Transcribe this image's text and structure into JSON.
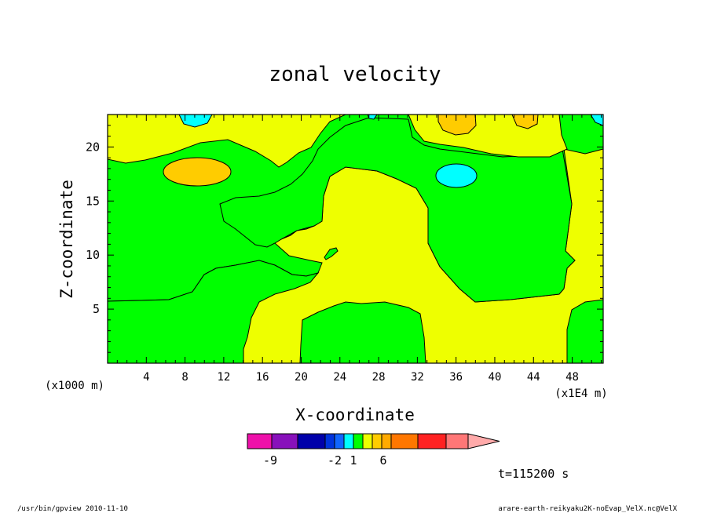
{
  "chart_data": {
    "type": "heatmap",
    "title": "zonal velocity",
    "xlabel": "X-coordinate",
    "ylabel": "Z-coordinate",
    "x_unit_label": "(x1E4 m)",
    "y_unit_label": "(x1000 m)",
    "xlim": [
      0,
      51.2
    ],
    "ylim": [
      0,
      23
    ],
    "x_ticks": [
      "4",
      "8",
      "12",
      "16",
      "20",
      "24",
      "28",
      "32",
      "36",
      "40",
      "44",
      "48"
    ],
    "y_ticks": [
      "5",
      "10",
      "15",
      "20"
    ],
    "time_label": "t=115200 s",
    "colorbar": {
      "colors": [
        "#ee11aa",
        "#8811bb",
        "#0000aa",
        "#0033dd",
        "#1166ff",
        "#00ffff",
        "#00ff00",
        "#eeff00",
        "#ffcc00",
        "#ffaa00",
        "#ff7700",
        "#ff2222",
        "#ff7777",
        "#ffaaaa"
      ],
      "tick_labels": [
        "-9",
        "-2",
        "1",
        "6"
      ],
      "extend": "max"
    },
    "regions": [
      {
        "name": "green region (0 to 1)",
        "color": "#00ff00"
      },
      {
        "name": "yellow region (1 to 2)",
        "color": "#eeff00"
      },
      {
        "name": "orange region (2 to 3)",
        "color": "#ffcc00"
      },
      {
        "name": "cyan region (-1 to 0)",
        "color": "#00ffff"
      }
    ]
  },
  "footer": {
    "left": "/usr/bin/gpview  2010-11-10",
    "right": "arare-earth-reikyaku2K-noEvap_VelX.nc@VelX"
  }
}
